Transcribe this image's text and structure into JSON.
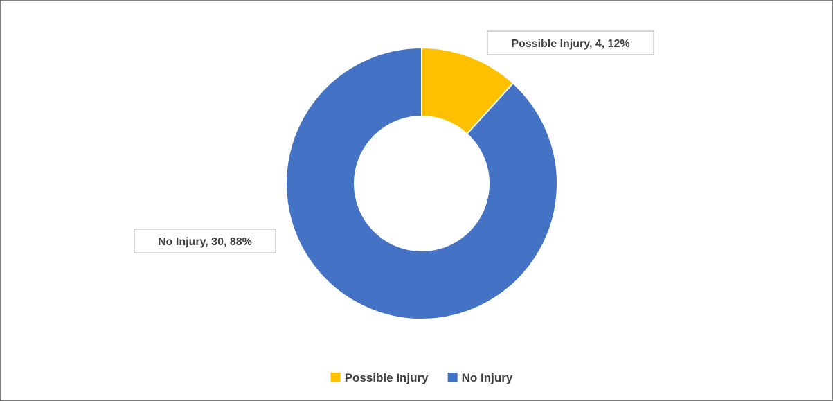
{
  "chart_data": {
    "type": "pie",
    "variant": "donut",
    "title": "",
    "legend_position": "bottom",
    "slices": [
      {
        "label": "Possible Injury",
        "value": 4,
        "percent": 12,
        "color": "#FFC000",
        "data_label": "Possible Injury, 4, 12%"
      },
      {
        "label": "No Injury",
        "value": 30,
        "percent": 88,
        "color": "#4472C4",
        "data_label": "No Injury, 30, 88%"
      }
    ]
  }
}
